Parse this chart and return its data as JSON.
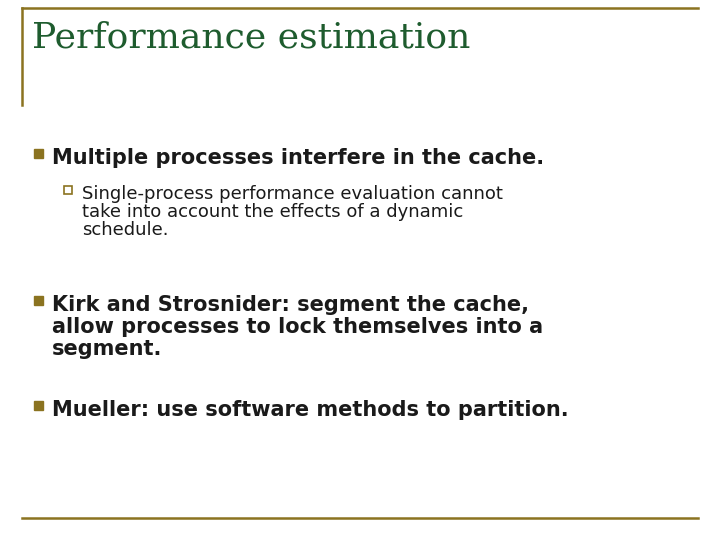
{
  "title": "Performance estimation",
  "title_color": "#1E5C2E",
  "title_fontsize": 26,
  "background_color": "#FFFFFF",
  "border_color": "#8B7320",
  "bullet_color": "#8B7320",
  "sub_bullet_border_color": "#8B7320",
  "text_color": "#1a1a1a",
  "bullet1": "Multiple processes interfere in the cache.",
  "sub_bullet1_line1": "Single-process performance evaluation cannot",
  "sub_bullet1_line2": "take into account the effects of a dynamic",
  "sub_bullet1_line3": "schedule.",
  "bullet2_line1": "Kirk and Strosnider: segment the cache,",
  "bullet2_line2": "allow processes to lock themselves into a",
  "bullet2_line3": "segment.",
  "bullet3": "Mueller: use software methods to partition.",
  "bullet_fontsize": 15,
  "sub_bullet_fontsize": 13
}
